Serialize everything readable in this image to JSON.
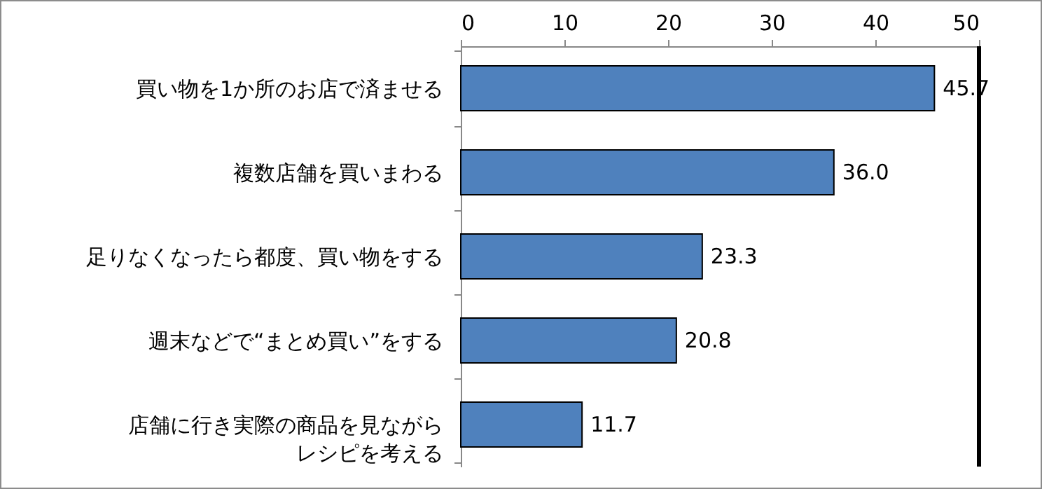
{
  "chart_data": {
    "type": "bar",
    "orientation": "horizontal",
    "categories": [
      "買い物を1か所のお店で済ませる",
      "複数店舗を買いまわる",
      "足りなくなったら都度、買い物をする",
      "週末などで“まとめ買い”をする",
      "店舗に行き実際の商品を見ながらレシピを考える"
    ],
    "values": [
      45.7,
      36.0,
      23.3,
      20.8,
      11.7
    ],
    "value_labels": [
      "45.7",
      "36.0",
      "23.3",
      "20.8",
      "11.7"
    ],
    "color": "#4f81bd",
    "xlim": [
      0,
      50
    ],
    "xticks": [
      0,
      10,
      20,
      30,
      40,
      50
    ],
    "ref_lines": [
      {
        "axis": "x",
        "value": 50,
        "color": "#000000"
      }
    ],
    "grid": false
  }
}
